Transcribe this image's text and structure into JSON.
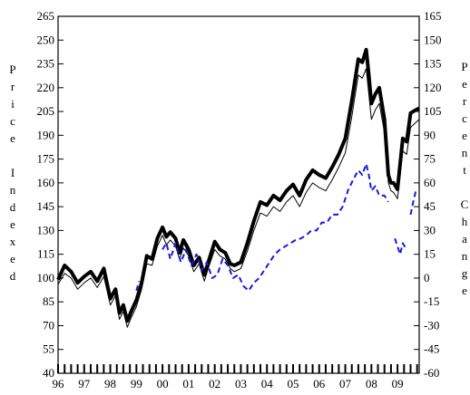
{
  "chart_data": {
    "type": "line",
    "title": "",
    "left_axis": {
      "label": "Price Indexed",
      "ylim": [
        40,
        265
      ],
      "ticks": [
        40,
        55,
        70,
        85,
        100,
        115,
        130,
        145,
        160,
        175,
        190,
        205,
        220,
        235,
        250,
        265
      ]
    },
    "right_axis": {
      "label": "Percent Change",
      "ylim": [
        -60,
        165
      ],
      "ticks": [
        -60,
        -45,
        -30,
        -15,
        0,
        15,
        30,
        45,
        60,
        75,
        90,
        105,
        120,
        135,
        150,
        165
      ]
    },
    "x_axis": {
      "xlim": [
        1996.0,
        2009.83
      ],
      "tick_labels": [
        "96",
        "97",
        "98",
        "99",
        "00",
        "01",
        "02",
        "03",
        "04",
        "05",
        "06",
        "07",
        "08",
        "09"
      ]
    },
    "series": [
      {
        "style": "thick-black",
        "axis": "left",
        "x": [
          1996.0,
          1996.25,
          1996.5,
          1996.75,
          1997.0,
          1997.25,
          1997.5,
          1997.75,
          1998.0,
          1998.2,
          1998.35,
          1998.5,
          1998.65,
          1998.8,
          1999.0,
          1999.2,
          1999.4,
          1999.6,
          1999.8,
          2000.0,
          2000.15,
          2000.3,
          2000.5,
          2000.65,
          2000.8,
          2001.0,
          2001.2,
          2001.4,
          2001.6,
          2001.75,
          2002.0,
          2002.2,
          2002.4,
          2002.6,
          2002.75,
          2003.0,
          2003.25,
          2003.5,
          2003.75,
          2004.0,
          2004.25,
          2004.5,
          2004.75,
          2005.0,
          2005.25,
          2005.5,
          2005.75,
          2006.0,
          2006.25,
          2006.5,
          2006.75,
          2007.0,
          2007.25,
          2007.5,
          2007.65,
          2007.8,
          2007.9,
          2008.0,
          2008.15,
          2008.3,
          2008.5,
          2008.65,
          2008.75,
          2008.85,
          2009.0,
          2009.2,
          2009.35,
          2009.5,
          2009.7,
          2009.83
        ],
        "y": [
          99,
          108,
          104,
          97,
          101,
          104,
          98,
          106,
          87,
          93,
          78,
          83,
          73,
          79,
          86,
          97,
          114,
          112,
          125,
          132,
          126,
          129,
          125,
          116,
          124,
          118,
          108,
          113,
          102,
          110,
          123,
          118,
          116,
          109,
          108,
          110,
          122,
          136,
          148,
          146,
          152,
          149,
          155,
          159,
          152,
          162,
          168,
          165,
          163,
          170,
          178,
          188,
          212,
          238,
          236,
          244,
          228,
          210,
          216,
          220,
          200,
          165,
          160,
          160,
          156,
          188,
          186,
          204,
          206,
          207
        ]
      },
      {
        "style": "thin-black",
        "axis": "left",
        "x": [
          1996.0,
          1996.25,
          1996.5,
          1996.75,
          1997.0,
          1997.25,
          1997.5,
          1997.75,
          1998.0,
          1998.2,
          1998.35,
          1998.5,
          1998.65,
          1998.8,
          1999.0,
          1999.2,
          1999.4,
          1999.6,
          1999.8,
          2000.0,
          2000.15,
          2000.3,
          2000.5,
          2000.65,
          2000.8,
          2001.0,
          2001.2,
          2001.4,
          2001.6,
          2001.75,
          2002.0,
          2002.2,
          2002.4,
          2002.6,
          2002.75,
          2003.0,
          2003.25,
          2003.5,
          2003.75,
          2004.0,
          2004.25,
          2004.5,
          2004.75,
          2005.0,
          2005.25,
          2005.5,
          2005.75,
          2006.0,
          2006.25,
          2006.5,
          2006.75,
          2007.0,
          2007.25,
          2007.5,
          2007.65,
          2007.8,
          2007.9,
          2008.0,
          2008.15,
          2008.3,
          2008.5,
          2008.65,
          2008.75,
          2008.85,
          2009.0,
          2009.2,
          2009.35,
          2009.5,
          2009.7,
          2009.83
        ],
        "y": [
          96,
          103,
          100,
          93,
          97,
          100,
          94,
          101,
          83,
          89,
          74,
          79,
          69,
          75,
          82,
          93,
          109,
          108,
          120,
          127,
          121,
          124,
          120,
          112,
          119,
          114,
          104,
          109,
          98,
          106,
          118,
          114,
          112,
          106,
          104,
          106,
          117,
          130,
          141,
          139,
          145,
          142,
          148,
          152,
          145,
          154,
          160,
          157,
          155,
          162,
          170,
          179,
          202,
          228,
          226,
          232,
          216,
          200,
          206,
          210,
          192,
          160,
          155,
          154,
          150,
          180,
          178,
          195,
          198,
          200
        ]
      },
      {
        "style": "dashed-blue",
        "axis": "right",
        "segments": [
          {
            "x": [
              1999.0,
              1999.1
            ],
            "y": [
              -8,
              -2
            ]
          },
          {
            "x": [
              2000.0,
              2000.15,
              2000.3,
              2000.5,
              2000.7,
              2000.9,
              2001.1,
              2001.3,
              2001.5,
              2001.7,
              2001.9,
              2002.1,
              2002.3,
              2002.5,
              2002.7,
              2002.9,
              2003.1,
              2003.3,
              2003.5,
              2003.7,
              2003.9,
              2004.1,
              2004.3,
              2004.5,
              2004.7,
              2004.9,
              2005.1,
              2005.3,
              2005.5,
              2005.7,
              2005.9,
              2006.1,
              2006.3,
              2006.5,
              2006.7,
              2006.9,
              2007.1,
              2007.3,
              2007.5,
              2007.65,
              2007.8,
              2007.9,
              2008.0,
              2008.15,
              2008.3,
              2008.5,
              2008.65
            ],
            "y": [
              18,
              22,
              12,
              22,
              10,
              18,
              8,
              15,
              5,
              10,
              0,
              2,
              12,
              8,
              0,
              2,
              -5,
              -8,
              -3,
              0,
              5,
              10,
              15,
              18,
              20,
              22,
              24,
              25,
              27,
              30,
              30,
              35,
              35,
              40,
              40,
              45,
              55,
              62,
              68,
              65,
              72,
              65,
              55,
              58,
              52,
              52,
              48
            ]
          },
          {
            "x": [
              2008.9,
              2009.0,
              2009.1,
              2009.2,
              2009.35
            ],
            "y": [
              25,
              20,
              15,
              22,
              18
            ]
          },
          {
            "x": [
              2009.5,
              2009.6,
              2009.7
            ],
            "y": [
              40,
              48,
              55
            ]
          }
        ]
      }
    ],
    "colors": {
      "thick": "#000000",
      "thin": "#000000",
      "dashed": "#1a1ad6"
    },
    "grid": false,
    "legend": "none"
  }
}
